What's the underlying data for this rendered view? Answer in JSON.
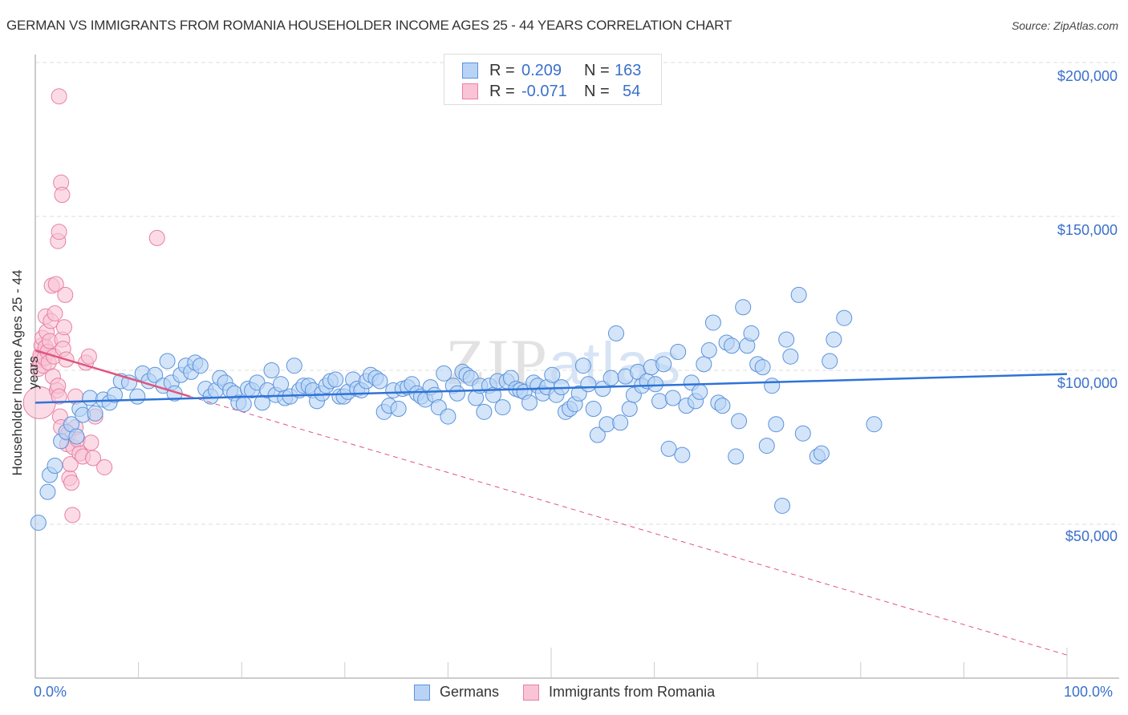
{
  "header": {
    "title": "GERMAN VS IMMIGRANTS FROM ROMANIA HOUSEHOLDER INCOME AGES 25 - 44 YEARS CORRELATION CHART",
    "source": "Source: ZipAtlas.com"
  },
  "watermark": {
    "zip": "ZIP",
    "atlas": "atlas"
  },
  "legend_top": {
    "rows": [
      {
        "r_label": "R =",
        "r_value": "0.209",
        "n_label": "N =",
        "n_value": "163"
      },
      {
        "r_label": "R =",
        "r_value": "-0.071",
        "n_label": "N =",
        "n_value": "54"
      }
    ]
  },
  "legend_bottom": {
    "items": [
      {
        "label": "Germans"
      },
      {
        "label": "Immigrants from Romania"
      }
    ]
  },
  "axes": {
    "ylabel": "Householder Income Ages 25 - 44 years",
    "yticks": [
      "$200,000",
      "$150,000",
      "$100,000",
      "$50,000"
    ],
    "xtick_left": "0.0%",
    "xtick_right": "100.0%"
  },
  "colors": {
    "blue_fill": "#b8d3f5",
    "blue_stroke": "#5b93dc",
    "blue_line": "#2f73d6",
    "pink_fill": "#f9c4d6",
    "pink_stroke": "#e97fa3",
    "pink_line": "#e0557f",
    "axis_text": "#3a70cc",
    "grid": "#dddddd"
  },
  "chart_data": {
    "type": "scatter",
    "title": "GERMAN VS IMMIGRANTS FROM ROMANIA HOUSEHOLDER INCOME AGES 25 - 44 YEARS CORRELATION CHART",
    "xlabel": "",
    "ylabel": "Householder Income Ages 25 - 44 years",
    "xlim": [
      0,
      100
    ],
    "ylim": [
      0,
      210000
    ],
    "xticks": [
      "0.0%",
      "100.0%"
    ],
    "yticks": [
      50000,
      100000,
      150000,
      200000
    ],
    "grid": true,
    "legend_position": "bottom",
    "series": [
      {
        "name": "Germans",
        "r": 0.209,
        "n": 163,
        "trend": {
          "x": [
            0,
            100
          ],
          "y": [
            89500,
            98800
          ]
        },
        "points": [
          [
            0.3,
            50500
          ],
          [
            1.2,
            60500
          ],
          [
            1.4,
            66000
          ],
          [
            1.9,
            69000
          ],
          [
            2.5,
            77000
          ],
          [
            3.0,
            80000
          ],
          [
            3.5,
            82500
          ],
          [
            4.0,
            78500
          ],
          [
            4.3,
            87500
          ],
          [
            4.6,
            85500
          ],
          [
            5.3,
            91000
          ],
          [
            5.8,
            86000
          ],
          [
            6.6,
            90500
          ],
          [
            7.2,
            89500
          ],
          [
            7.7,
            92000
          ],
          [
            8.3,
            96500
          ],
          [
            9.1,
            96000
          ],
          [
            9.9,
            91500
          ],
          [
            10.4,
            99000
          ],
          [
            11.0,
            96500
          ],
          [
            11.6,
            98500
          ],
          [
            12.4,
            95000
          ],
          [
            12.8,
            103000
          ],
          [
            13.2,
            96000
          ],
          [
            13.5,
            92500
          ],
          [
            14.1,
            98500
          ],
          [
            14.6,
            101500
          ],
          [
            15.1,
            99500
          ],
          [
            15.5,
            102500
          ],
          [
            16.0,
            101500
          ],
          [
            16.5,
            94000
          ],
          [
            17.0,
            91500
          ],
          [
            17.5,
            93500
          ],
          [
            17.9,
            97500
          ],
          [
            18.4,
            96000
          ],
          [
            18.9,
            93500
          ],
          [
            19.3,
            92500
          ],
          [
            19.7,
            89500
          ],
          [
            20.2,
            89000
          ],
          [
            20.6,
            94000
          ],
          [
            21.0,
            93500
          ],
          [
            21.5,
            96000
          ],
          [
            22.0,
            89500
          ],
          [
            22.5,
            93500
          ],
          [
            22.9,
            100000
          ],
          [
            23.3,
            92000
          ],
          [
            23.8,
            95500
          ],
          [
            24.2,
            91000
          ],
          [
            24.7,
            91500
          ],
          [
            25.1,
            101500
          ],
          [
            25.6,
            93500
          ],
          [
            26.0,
            95000
          ],
          [
            26.5,
            95000
          ],
          [
            26.9,
            93500
          ],
          [
            27.3,
            90000
          ],
          [
            27.8,
            92500
          ],
          [
            28.2,
            95000
          ],
          [
            28.6,
            96500
          ],
          [
            29.1,
            97000
          ],
          [
            29.5,
            91500
          ],
          [
            29.9,
            91500
          ],
          [
            30.3,
            93000
          ],
          [
            30.8,
            97000
          ],
          [
            31.2,
            94000
          ],
          [
            31.6,
            93500
          ],
          [
            32.1,
            96500
          ],
          [
            32.5,
            98500
          ],
          [
            33.0,
            97500
          ],
          [
            33.4,
            96500
          ],
          [
            33.8,
            86500
          ],
          [
            34.3,
            88500
          ],
          [
            34.7,
            93500
          ],
          [
            35.2,
            87500
          ],
          [
            35.6,
            94000
          ],
          [
            36.1,
            94500
          ],
          [
            36.5,
            95500
          ],
          [
            37.0,
            92500
          ],
          [
            37.4,
            91500
          ],
          [
            37.8,
            90500
          ],
          [
            38.3,
            94500
          ],
          [
            38.7,
            92000
          ],
          [
            39.1,
            88000
          ],
          [
            39.6,
            99000
          ],
          [
            40.0,
            85000
          ],
          [
            40.5,
            95000
          ],
          [
            40.9,
            92500
          ],
          [
            41.4,
            99500
          ],
          [
            41.8,
            98500
          ],
          [
            42.2,
            97500
          ],
          [
            42.7,
            91000
          ],
          [
            43.1,
            95000
          ],
          [
            43.5,
            86500
          ],
          [
            44.0,
            95000
          ],
          [
            44.4,
            92000
          ],
          [
            44.8,
            96500
          ],
          [
            45.3,
            88000
          ],
          [
            45.7,
            96500
          ],
          [
            46.1,
            97500
          ],
          [
            46.6,
            94000
          ],
          [
            47.0,
            93500
          ],
          [
            47.4,
            93000
          ],
          [
            47.9,
            89500
          ],
          [
            48.3,
            96000
          ],
          [
            48.7,
            95000
          ],
          [
            49.2,
            92500
          ],
          [
            49.6,
            94500
          ],
          [
            50.1,
            98500
          ],
          [
            50.5,
            92000
          ],
          [
            51.0,
            94500
          ],
          [
            51.4,
            86500
          ],
          [
            51.8,
            87500
          ],
          [
            52.3,
            89000
          ],
          [
            52.7,
            92500
          ],
          [
            53.1,
            101500
          ],
          [
            53.6,
            95500
          ],
          [
            54.1,
            87500
          ],
          [
            54.5,
            79000
          ],
          [
            55.0,
            94000
          ],
          [
            55.4,
            82500
          ],
          [
            55.8,
            97500
          ],
          [
            56.3,
            112000
          ],
          [
            56.7,
            83000
          ],
          [
            57.2,
            98000
          ],
          [
            57.6,
            87500
          ],
          [
            58.0,
            92000
          ],
          [
            58.4,
            99500
          ],
          [
            58.8,
            95000
          ],
          [
            59.3,
            96500
          ],
          [
            59.7,
            101000
          ],
          [
            60.1,
            95500
          ],
          [
            60.5,
            90000
          ],
          [
            60.9,
            102000
          ],
          [
            61.4,
            74500
          ],
          [
            61.8,
            91000
          ],
          [
            62.3,
            106000
          ],
          [
            62.7,
            72500
          ],
          [
            63.1,
            88500
          ],
          [
            63.6,
            96000
          ],
          [
            64.0,
            90000
          ],
          [
            64.4,
            93000
          ],
          [
            64.8,
            102000
          ],
          [
            65.3,
            106500
          ],
          [
            65.7,
            115500
          ],
          [
            66.2,
            89500
          ],
          [
            66.6,
            88500
          ],
          [
            67.0,
            109000
          ],
          [
            67.5,
            108000
          ],
          [
            67.9,
            72000
          ],
          [
            68.2,
            83500
          ],
          [
            68.6,
            120500
          ],
          [
            69.0,
            108000
          ],
          [
            69.4,
            112000
          ],
          [
            70.0,
            102000
          ],
          [
            70.5,
            101000
          ],
          [
            70.9,
            75500
          ],
          [
            71.4,
            95000
          ],
          [
            71.8,
            82500
          ],
          [
            72.4,
            56000
          ],
          [
            72.8,
            110000
          ],
          [
            73.2,
            104500
          ],
          [
            74.0,
            124500
          ],
          [
            74.4,
            79500
          ],
          [
            75.8,
            72000
          ],
          [
            76.2,
            73000
          ],
          [
            77.0,
            103000
          ],
          [
            77.4,
            110000
          ],
          [
            78.4,
            117000
          ],
          [
            81.3,
            82500
          ]
        ]
      },
      {
        "name": "Immigrants from Romania",
        "r": -0.071,
        "n": 54,
        "trend": {
          "x": [
            0,
            15
          ],
          "y": [
            106500,
            91500
          ]
        },
        "trend_dashed": {
          "x": [
            15,
            100
          ],
          "y": [
            91500,
            7500
          ]
        },
        "points": [
          [
            0.4,
            89500
          ],
          [
            0.3,
            100500
          ],
          [
            0.4,
            103500
          ],
          [
            0.5,
            105000
          ],
          [
            0.6,
            108000
          ],
          [
            0.7,
            110500
          ],
          [
            0.8,
            101500
          ],
          [
            0.9,
            104000
          ],
          [
            1.0,
            107500
          ],
          [
            1.0,
            117500
          ],
          [
            1.1,
            112500
          ],
          [
            1.2,
            106000
          ],
          [
            1.3,
            102500
          ],
          [
            1.4,
            109500
          ],
          [
            1.5,
            116000
          ],
          [
            1.6,
            127500
          ],
          [
            1.7,
            98000
          ],
          [
            1.8,
            104500
          ],
          [
            1.9,
            118500
          ],
          [
            2.0,
            128000
          ],
          [
            2.1,
            93500
          ],
          [
            2.2,
            95000
          ],
          [
            2.3,
            91500
          ],
          [
            2.4,
            85000
          ],
          [
            2.5,
            81500
          ],
          [
            2.6,
            110000
          ],
          [
            2.7,
            107000
          ],
          [
            2.8,
            114000
          ],
          [
            2.9,
            124500
          ],
          [
            3.0,
            103500
          ],
          [
            3.1,
            76000
          ],
          [
            3.2,
            79500
          ],
          [
            3.3,
            65000
          ],
          [
            3.4,
            69500
          ],
          [
            3.5,
            63500
          ],
          [
            3.6,
            53000
          ],
          [
            3.7,
            75000
          ],
          [
            3.9,
            91500
          ],
          [
            2.2,
            142000
          ],
          [
            2.3,
            145000
          ],
          [
            2.3,
            189000
          ],
          [
            2.5,
            161000
          ],
          [
            2.6,
            157000
          ],
          [
            3.9,
            81500
          ],
          [
            4.1,
            77500
          ],
          [
            4.3,
            73000
          ],
          [
            4.6,
            72000
          ],
          [
            4.9,
            102500
          ],
          [
            5.2,
            104500
          ],
          [
            5.4,
            76500
          ],
          [
            5.6,
            71500
          ],
          [
            5.8,
            85000
          ],
          [
            6.7,
            68500
          ],
          [
            11.8,
            143000
          ]
        ]
      }
    ]
  }
}
